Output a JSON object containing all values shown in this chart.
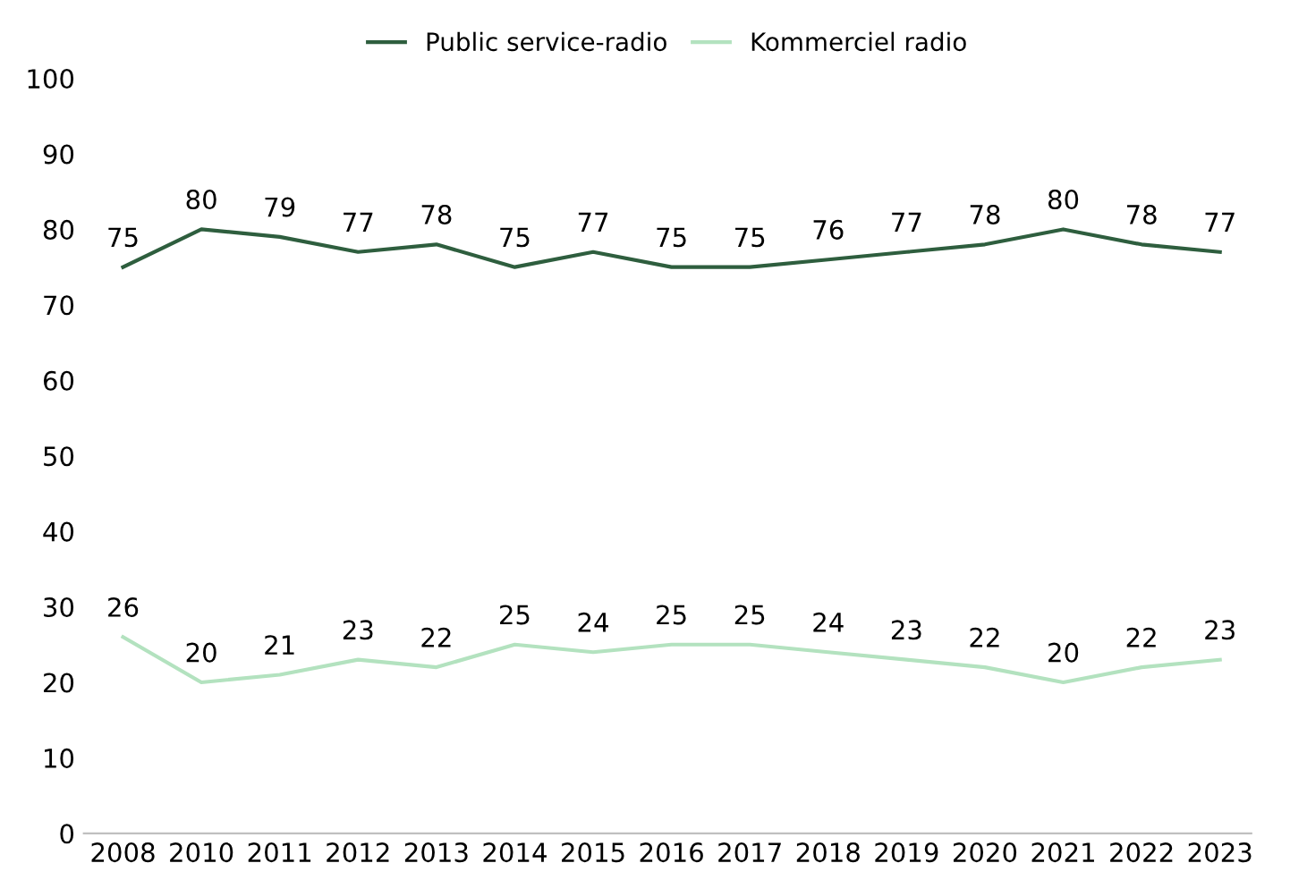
{
  "chart_data": {
    "type": "line",
    "categories": [
      "2008",
      "2010",
      "2011",
      "2012",
      "2013",
      "2014",
      "2015",
      "2016",
      "2017",
      "2018",
      "2019",
      "2020",
      "2021",
      "2022",
      "2023"
    ],
    "series": [
      {
        "name": "Public service-radio",
        "color": "#2e5e3e",
        "values": [
          75,
          80,
          79,
          77,
          78,
          75,
          77,
          75,
          75,
          76,
          77,
          78,
          80,
          78,
          77
        ]
      },
      {
        "name": "Kommerciel radio",
        "color": "#b3e2bf",
        "values": [
          26,
          20,
          21,
          23,
          22,
          25,
          24,
          25,
          25,
          24,
          23,
          22,
          20,
          22,
          23
        ]
      }
    ],
    "ylim": [
      0,
      100
    ],
    "yticks": [
      0,
      10,
      20,
      30,
      40,
      50,
      60,
      70,
      80,
      90,
      100
    ],
    "grid": false,
    "legend": "top",
    "data_labels": true,
    "marker": "none",
    "line_style": "solid"
  }
}
